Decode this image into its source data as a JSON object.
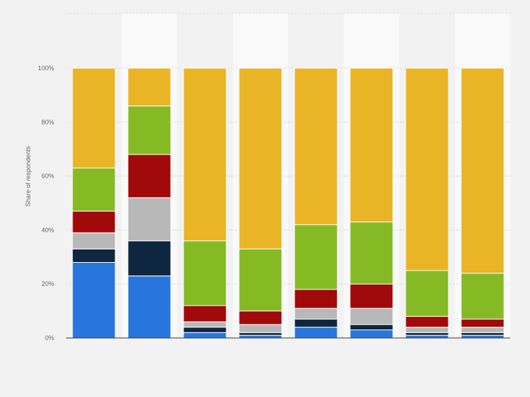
{
  "chart_data": {
    "type": "bar",
    "stacked": true,
    "categories": [
      "",
      "",
      "",
      "",
      "",
      "",
      "",
      ""
    ],
    "series": [
      {
        "color": "#2876dd",
        "values": [
          28,
          23,
          2,
          1,
          4,
          3,
          1,
          1
        ]
      },
      {
        "color": "#0f2640",
        "values": [
          5,
          13,
          2,
          1,
          3,
          2,
          1,
          1
        ]
      },
      {
        "color": "#b8b8b8",
        "values": [
          6,
          16,
          2,
          3,
          4,
          6,
          2,
          2
        ]
      },
      {
        "color": "#a10a0a",
        "values": [
          8,
          16,
          6,
          5,
          7,
          9,
          4,
          3
        ]
      },
      {
        "color": "#86ba25",
        "values": [
          16,
          18,
          24,
          23,
          24,
          23,
          17,
          17
        ]
      },
      {
        "color": "#e9b425",
        "values": [
          37,
          14,
          64,
          67,
          58,
          57,
          75,
          76
        ]
      }
    ],
    "ylabel": "Share of respondents",
    "ylim": [
      0,
      100
    ],
    "yticks": [
      "0%",
      "20%",
      "40%",
      "60%",
      "80%",
      "100%"
    ],
    "grid": true,
    "legend": "none"
  }
}
